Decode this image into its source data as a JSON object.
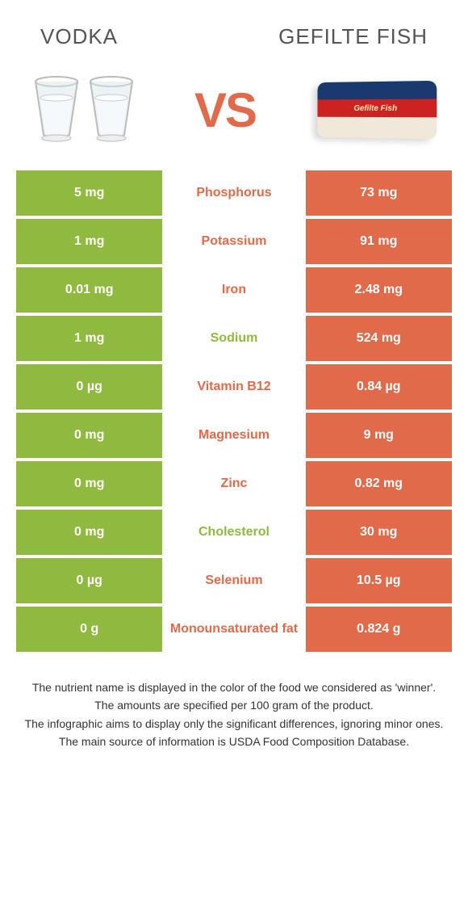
{
  "header": {
    "left": "VODKA",
    "right": "GEFILTE FISH"
  },
  "vs": "VS",
  "colors": {
    "left": "#8fba3f",
    "right": "#e06a49",
    "mid_text": "#888888",
    "bg": "#ffffff"
  },
  "package_label": "Gefilte Fish",
  "rows": [
    {
      "left": "5 mg",
      "nutrient": "Phosphorus",
      "right": "73 mg",
      "winner": "right"
    },
    {
      "left": "1 mg",
      "nutrient": "Potassium",
      "right": "91 mg",
      "winner": "right"
    },
    {
      "left": "0.01 mg",
      "nutrient": "Iron",
      "right": "2.48 mg",
      "winner": "right"
    },
    {
      "left": "1 mg",
      "nutrient": "Sodium",
      "right": "524 mg",
      "winner": "left"
    },
    {
      "left": "0 µg",
      "nutrient": "Vitamin B12",
      "right": "0.84 µg",
      "winner": "right"
    },
    {
      "left": "0 mg",
      "nutrient": "Magnesium",
      "right": "9 mg",
      "winner": "right"
    },
    {
      "left": "0 mg",
      "nutrient": "Zinc",
      "right": "0.82 mg",
      "winner": "right"
    },
    {
      "left": "0 mg",
      "nutrient": "Cholesterol",
      "right": "30 mg",
      "winner": "left"
    },
    {
      "left": "0 µg",
      "nutrient": "Selenium",
      "right": "10.5 µg",
      "winner": "right"
    },
    {
      "left": "0 g",
      "nutrient": "Monounsaturated fat",
      "right": "0.824 g",
      "winner": "right"
    }
  ],
  "footnotes": [
    "The nutrient name is displayed in the color of the food we considered as 'winner'.",
    "The amounts are specified per 100 gram of the product.",
    "The infographic aims to display only the significant differences, ignoring minor ones.",
    "The main source of information is USDA Food Composition Database."
  ]
}
